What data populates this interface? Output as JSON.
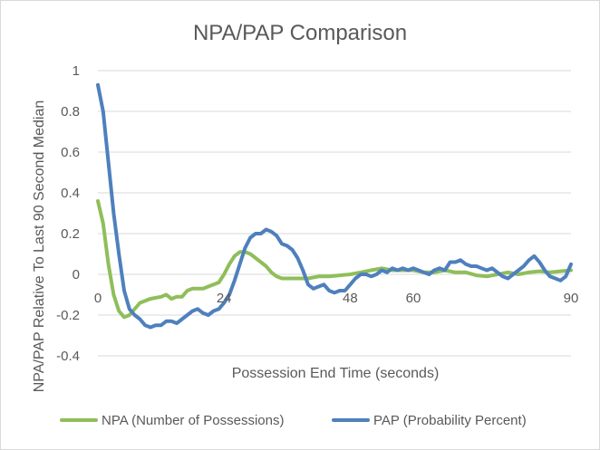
{
  "chart_data": {
    "type": "line",
    "title": "NPA/PAP Comparison",
    "xlabel": "Possession End Time (seconds)",
    "ylabel": "NPA/PAP Relative To Last 90 Second Median",
    "xlim": [
      0,
      90
    ],
    "ylim": [
      -0.4,
      1
    ],
    "yticks": [
      -0.4,
      -0.2,
      0,
      0.2,
      0.4,
      0.6,
      0.8,
      1
    ],
    "ytick_labels": [
      "-0.4",
      "-0.2",
      "0",
      "0.2",
      "0.4",
      "0.6",
      "0.8",
      "1"
    ],
    "xticks": [
      0,
      24,
      48,
      60,
      90
    ],
    "xtick_labels": [
      "0",
      "24",
      "48",
      "60",
      "90"
    ],
    "grid": "horizontal",
    "legend_position": "bottom",
    "series": [
      {
        "name": "NPA (Number of Possessions)",
        "color": "#8fbe5a",
        "x": [
          0,
          1,
          2,
          3,
          4,
          5,
          6,
          8,
          10,
          12,
          13,
          14,
          15,
          16,
          17,
          18,
          20,
          22,
          23,
          24,
          25,
          26,
          27,
          28,
          29,
          30,
          31,
          32,
          33,
          34,
          35,
          36,
          38,
          40,
          42,
          44,
          46,
          48,
          50,
          52,
          54,
          56,
          58,
          60,
          62,
          64,
          66,
          68,
          70,
          72,
          74,
          76,
          78,
          80,
          82,
          84,
          86,
          88,
          90
        ],
        "y": [
          0.36,
          0.25,
          0.05,
          -0.1,
          -0.18,
          -0.21,
          -0.2,
          -0.14,
          -0.12,
          -0.11,
          -0.1,
          -0.12,
          -0.11,
          -0.11,
          -0.08,
          -0.07,
          -0.07,
          -0.05,
          -0.04,
          0.0,
          0.05,
          0.09,
          0.11,
          0.11,
          0.1,
          0.08,
          0.06,
          0.04,
          0.01,
          -0.01,
          -0.02,
          -0.02,
          -0.02,
          -0.02,
          -0.01,
          -0.01,
          -0.005,
          0.0,
          0.01,
          0.02,
          0.03,
          0.02,
          0.02,
          0.02,
          0.01,
          0.01,
          0.02,
          0.01,
          0.01,
          -0.005,
          -0.01,
          0.0,
          0.01,
          0.0,
          0.01,
          0.015,
          0.01,
          0.015,
          0.02
        ]
      },
      {
        "name": "PAP (Probability Percent)",
        "color": "#4e80bd",
        "x": [
          0,
          1,
          2,
          3,
          4,
          5,
          6,
          7,
          8,
          9,
          10,
          11,
          12,
          13,
          14,
          15,
          16,
          17,
          18,
          19,
          20,
          21,
          22,
          23,
          24,
          25,
          26,
          27,
          28,
          29,
          30,
          31,
          32,
          33,
          34,
          35,
          36,
          37,
          38,
          39,
          40,
          41,
          42,
          43,
          44,
          45,
          46,
          47,
          48,
          49,
          50,
          51,
          52,
          53,
          54,
          55,
          56,
          57,
          58,
          59,
          60,
          61,
          62,
          63,
          64,
          65,
          66,
          67,
          68,
          69,
          70,
          71,
          72,
          73,
          74,
          75,
          76,
          77,
          78,
          79,
          80,
          81,
          82,
          83,
          84,
          85,
          86,
          87,
          88,
          89,
          90
        ],
        "y": [
          0.93,
          0.8,
          0.55,
          0.3,
          0.1,
          -0.08,
          -0.17,
          -0.2,
          -0.22,
          -0.25,
          -0.26,
          -0.25,
          -0.25,
          -0.23,
          -0.23,
          -0.24,
          -0.22,
          -0.2,
          -0.18,
          -0.17,
          -0.19,
          -0.2,
          -0.18,
          -0.17,
          -0.14,
          -0.1,
          -0.03,
          0.05,
          0.13,
          0.18,
          0.2,
          0.2,
          0.22,
          0.21,
          0.19,
          0.15,
          0.14,
          0.12,
          0.08,
          0.02,
          -0.05,
          -0.07,
          -0.06,
          -0.05,
          -0.08,
          -0.09,
          -0.08,
          -0.08,
          -0.05,
          -0.02,
          0.0,
          0.0,
          -0.01,
          0.0,
          0.02,
          0.01,
          0.03,
          0.02,
          0.03,
          0.02,
          0.03,
          0.02,
          0.01,
          0.0,
          0.02,
          0.03,
          0.02,
          0.06,
          0.06,
          0.07,
          0.05,
          0.04,
          0.04,
          0.03,
          0.02,
          0.03,
          0.01,
          -0.01,
          -0.02,
          0.0,
          0.02,
          0.04,
          0.07,
          0.09,
          0.06,
          0.02,
          -0.01,
          -0.02,
          -0.03,
          -0.01,
          0.05
        ]
      }
    ]
  }
}
